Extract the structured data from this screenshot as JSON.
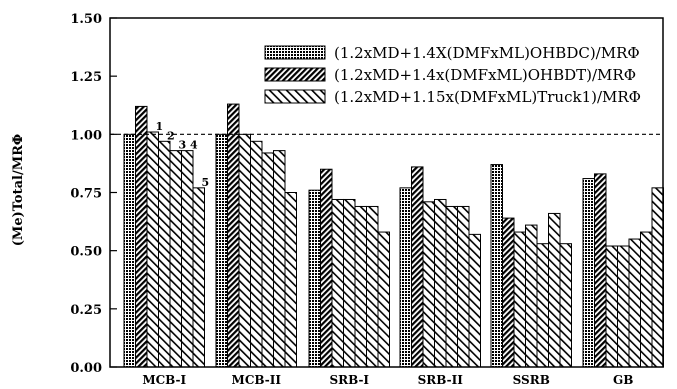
{
  "chart_data": {
    "type": "bar",
    "title": "",
    "xlabel": "",
    "ylabel": "(Me)Total/MRΦ",
    "ylim": [
      0,
      1.5
    ],
    "yticks": [
      "0.00",
      "0.25",
      "0.50",
      "0.75",
      "1.00",
      "1.25",
      "1.50"
    ],
    "reference_line": 1.0,
    "legend_position": "top-right",
    "categories": [
      "MCB-I",
      "MCB-II",
      "SRB-I",
      "SRB-II",
      "SSRB",
      "GB"
    ],
    "series": [
      {
        "name": "(1.2xMD+1.4X(DMFxML)OHBDC)/MRΦ",
        "pattern": "crosshatch",
        "values": [
          1.0,
          1.0,
          0.76,
          0.77,
          0.87,
          0.81
        ]
      },
      {
        "name": "(1.2xMD+1.4x(DMFxML)OHBDT)/MRΦ",
        "pattern": "dense-hatch",
        "values": [
          1.12,
          1.13,
          0.85,
          0.86,
          0.64,
          0.83
        ]
      },
      {
        "name": "(1.2xMD+1.15x(DMFxML)Truck1)/MRΦ",
        "pattern": "diagonal",
        "values": [
          [
            1.01,
            0.97,
            0.93,
            0.93,
            0.77
          ],
          [
            1.0,
            0.97,
            0.92,
            0.93,
            0.75
          ],
          [
            0.72,
            0.72,
            0.69,
            0.69,
            0.58
          ],
          [
            0.71,
            0.72,
            0.69,
            0.69,
            0.57
          ],
          [
            0.58,
            0.61,
            0.53,
            0.66,
            0.53
          ],
          [
            0.52,
            0.52,
            0.55,
            0.58,
            0.77
          ]
        ]
      }
    ],
    "annotations": [
      "1",
      "2",
      "3",
      "4",
      "5"
    ]
  }
}
